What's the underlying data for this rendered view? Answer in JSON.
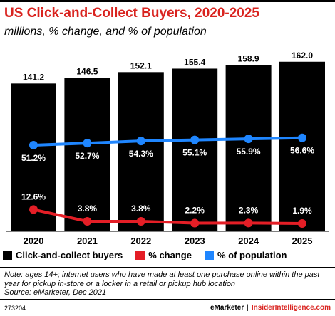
{
  "header": {
    "title": "US Click-and-Collect Buyers, 2020-2025",
    "subtitle": "millions, % change, and % of population"
  },
  "chart_data": {
    "type": "bar",
    "categories": [
      "2020",
      "2021",
      "2022",
      "2023",
      "2024",
      "2025"
    ],
    "series": [
      {
        "name": "Click-and-collect buyers",
        "values": [
          141.2,
          146.5,
          152.1,
          155.4,
          158.9,
          162.0
        ],
        "labels": [
          "141.2",
          "146.5",
          "152.1",
          "155.4",
          "158.9",
          "162.0"
        ],
        "color": "#000000",
        "kind": "bar"
      },
      {
        "name": "% change",
        "values": [
          12.6,
          3.8,
          3.8,
          2.2,
          2.3,
          1.9
        ],
        "labels": [
          "12.6%",
          "3.8%",
          "3.8%",
          "2.2%",
          "2.3%",
          "1.9%"
        ],
        "color": "#e41e26",
        "kind": "line"
      },
      {
        "name": "% of population",
        "values": [
          51.2,
          52.7,
          54.3,
          55.1,
          55.9,
          56.6
        ],
        "labels": [
          "51.2%",
          "52.7%",
          "54.3%",
          "55.1%",
          "55.9%",
          "56.6%"
        ],
        "color": "#1f86ff",
        "kind": "line"
      }
    ],
    "ylim": [
      0,
      170
    ],
    "grid": false,
    "legend_position": "bottom"
  },
  "legend": {
    "items": [
      {
        "label": "Click-and-collect buyers",
        "color": "#000000"
      },
      {
        "label": "% change",
        "color": "#e41e26"
      },
      {
        "label": "% of population",
        "color": "#1f86ff"
      }
    ]
  },
  "note": {
    "line1": "Note: ages 14+; internet users who have made at least one purchase online within the past year for pickup in-store or a locker in a retail or pickup hub location",
    "line2": "Source: eMarketer, Dec 2021"
  },
  "footer": {
    "id": "273204",
    "brand": "eMarketer",
    "separator": "|",
    "site": "InsiderIntelligence.com"
  }
}
